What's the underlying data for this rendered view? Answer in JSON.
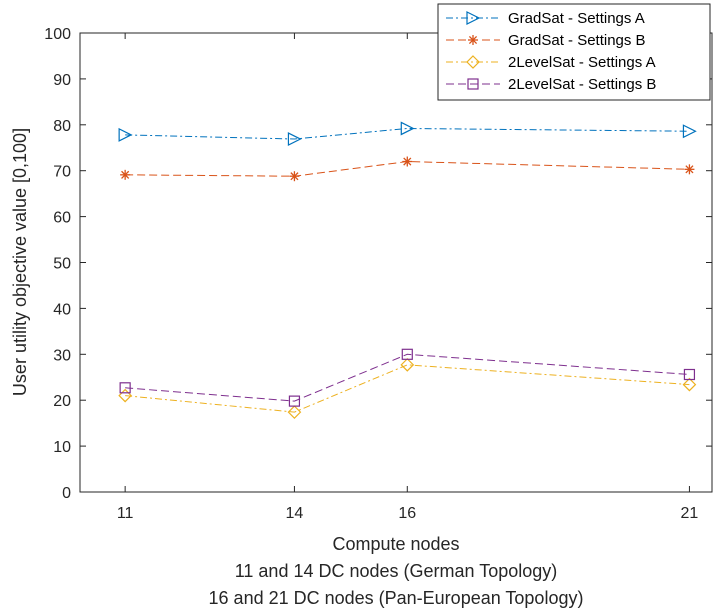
{
  "chart_data": {
    "type": "line",
    "title": "",
    "xlabel_lines": [
      "Compute nodes",
      "11 and 14 DC nodes (German Topology)",
      "16 and 21 DC nodes (Pan-European Topology)"
    ],
    "ylabel": "User utility objective value [0,100]",
    "x": [
      11,
      14,
      16,
      21
    ],
    "x_ticks": [
      "11",
      "14",
      "16",
      "21"
    ],
    "xlim": [
      10.2,
      21.4
    ],
    "ylim": [
      0,
      100
    ],
    "y_ticks": [
      "0",
      "10",
      "20",
      "30",
      "40",
      "50",
      "60",
      "70",
      "80",
      "90",
      "100"
    ],
    "grid": false,
    "legend_position": "top-right",
    "series": [
      {
        "name": "GradSat - Settings A",
        "values": [
          77.8,
          76.9,
          79.2,
          78.6
        ],
        "color": "#0072BD",
        "marker": "triangle-right",
        "line_style": "dash-dot"
      },
      {
        "name": "GradSat - Settings B",
        "values": [
          69.1,
          68.8,
          72.0,
          70.3
        ],
        "color": "#D95319",
        "marker": "asterisk",
        "line_style": "dashed"
      },
      {
        "name": "2LevelSat - Settings A",
        "values": [
          21.0,
          17.4,
          27.7,
          23.4
        ],
        "color": "#EDB120",
        "marker": "diamond",
        "line_style": "dash-dot"
      },
      {
        "name": "2LevelSat - Settings B",
        "values": [
          22.7,
          19.8,
          30.0,
          25.6
        ],
        "color": "#7E2F8E",
        "marker": "square",
        "line_style": "dashed"
      }
    ]
  }
}
